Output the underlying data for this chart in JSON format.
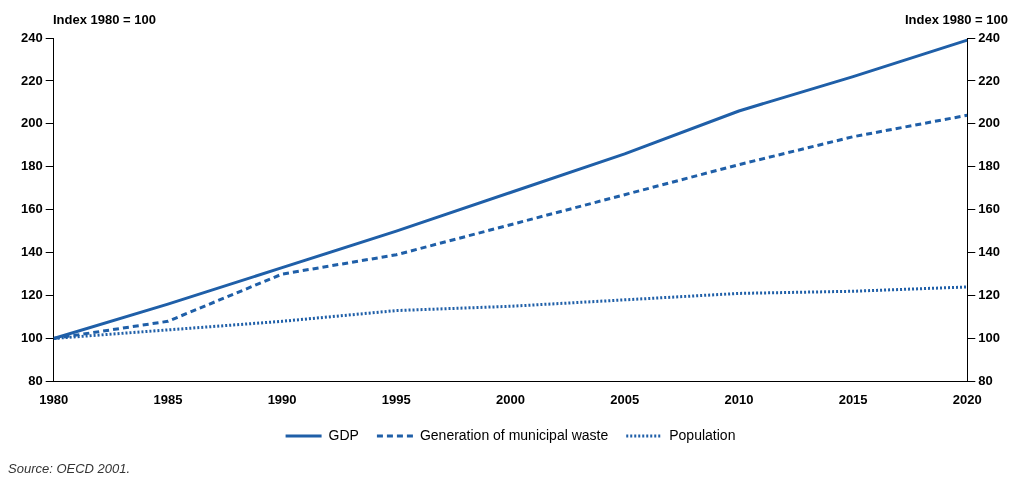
{
  "chart_data": {
    "type": "line",
    "ylabel": "Index 1980 = 100",
    "y2label": "Index 1980 = 100",
    "x": [
      1980,
      1985,
      1990,
      1995,
      2000,
      2005,
      2010,
      2015,
      2020
    ],
    "xlim": [
      1980,
      2020
    ],
    "xticks": [
      1980,
      1985,
      1990,
      1995,
      2000,
      2005,
      2010,
      2015,
      2020
    ],
    "ylim": [
      80,
      240
    ],
    "yticks": [
      80,
      100,
      120,
      140,
      160,
      180,
      200,
      220,
      240
    ],
    "y2lim": [
      80,
      240
    ],
    "y2ticks": [
      80,
      100,
      120,
      140,
      160,
      180,
      200,
      220,
      240
    ],
    "series": [
      {
        "name": "GDP",
        "color": "#1f5fa8",
        "line_style": "solid",
        "values": [
          100,
          116,
          133,
          150,
          168,
          186,
          206,
          222,
          239
        ]
      },
      {
        "name": "Generation of municipal waste",
        "color": "#1f5fa8",
        "line_style": "dashed",
        "values": [
          100,
          108,
          130,
          139,
          153,
          167,
          181,
          194,
          204
        ]
      },
      {
        "name": "Population",
        "color": "#1f5fa8",
        "line_style": "dotted",
        "values": [
          100,
          104,
          108,
          113,
          115,
          118,
          121,
          122,
          124
        ]
      }
    ],
    "grid": false,
    "legend": "bottom",
    "marker": "none",
    "annotations": [
      "Source:  OECD 2001."
    ]
  }
}
